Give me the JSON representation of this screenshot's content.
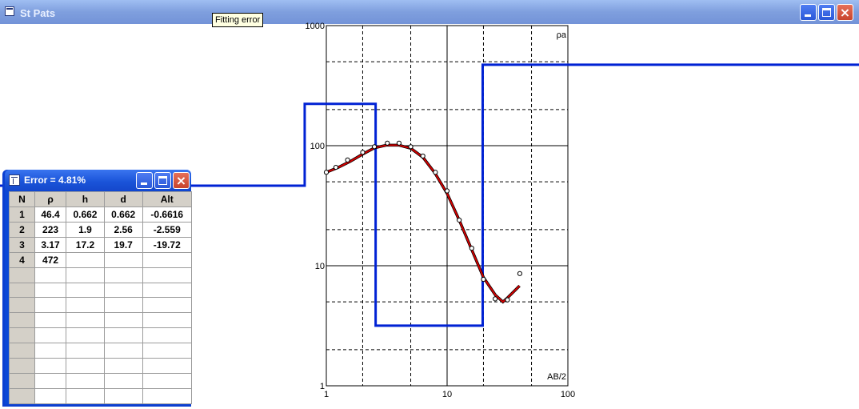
{
  "main_window": {
    "title": "St Pats"
  },
  "tooltip": "Fitting error",
  "chart_data": {
    "type": "line",
    "x_scale": "log",
    "y_scale": "log",
    "xlim": [
      1,
      100
    ],
    "ylim": [
      1,
      1000
    ],
    "x_ticks": [
      "1",
      "10",
      "100"
    ],
    "y_ticks": [
      "1",
      "10",
      "100",
      "1000"
    ],
    "xlabel": "AB/2",
    "ylabel": "ρa",
    "grid": true,
    "observed": {
      "x": [
        1.0,
        1.2,
        1.5,
        2.0,
        2.5,
        3.2,
        4.0,
        5.0,
        6.3,
        8.0,
        10.0,
        12.6,
        16.0,
        20.0,
        25.0,
        31.6,
        40.0
      ],
      "y": [
        60,
        66,
        76,
        88,
        98,
        105,
        105,
        98,
        82,
        60,
        42,
        24,
        14,
        7.7,
        5.3,
        5.2,
        8.6
      ]
    },
    "calculated": {
      "x": [
        1.0,
        1.26,
        1.58,
        2.0,
        2.51,
        3.16,
        3.98,
        5.01,
        6.31,
        7.94,
        10.0,
        12.6,
        15.8,
        20.0,
        25.1,
        29.0,
        31.6,
        39.8
      ],
      "y": [
        60,
        66,
        74,
        85,
        96,
        101,
        101,
        95,
        80,
        59,
        40,
        24,
        14,
        8,
        5.7,
        5.0,
        5.4,
        6.8
      ]
    },
    "layer_model": {
      "resistivity": [
        46.4,
        223,
        3.17,
        472
      ],
      "depth": [
        0.662,
        2.56,
        19.7
      ]
    },
    "colors": {
      "model": "#0022d4",
      "fit": "#d40000",
      "observed": "#000000"
    }
  },
  "error_window": {
    "title": "Error = 4.81%",
    "columns": [
      "N",
      "ρ",
      "h",
      "d",
      "Alt"
    ],
    "rows": [
      [
        "1",
        "46.4",
        "0.662",
        "0.662",
        "-0.6616"
      ],
      [
        "2",
        "223",
        "1.9",
        "2.56",
        "-2.559"
      ],
      [
        "3",
        "3.17",
        "17.2",
        "19.7",
        "-19.72"
      ],
      [
        "4",
        "472",
        "",
        "",
        ""
      ]
    ],
    "empty_rows": 9
  }
}
